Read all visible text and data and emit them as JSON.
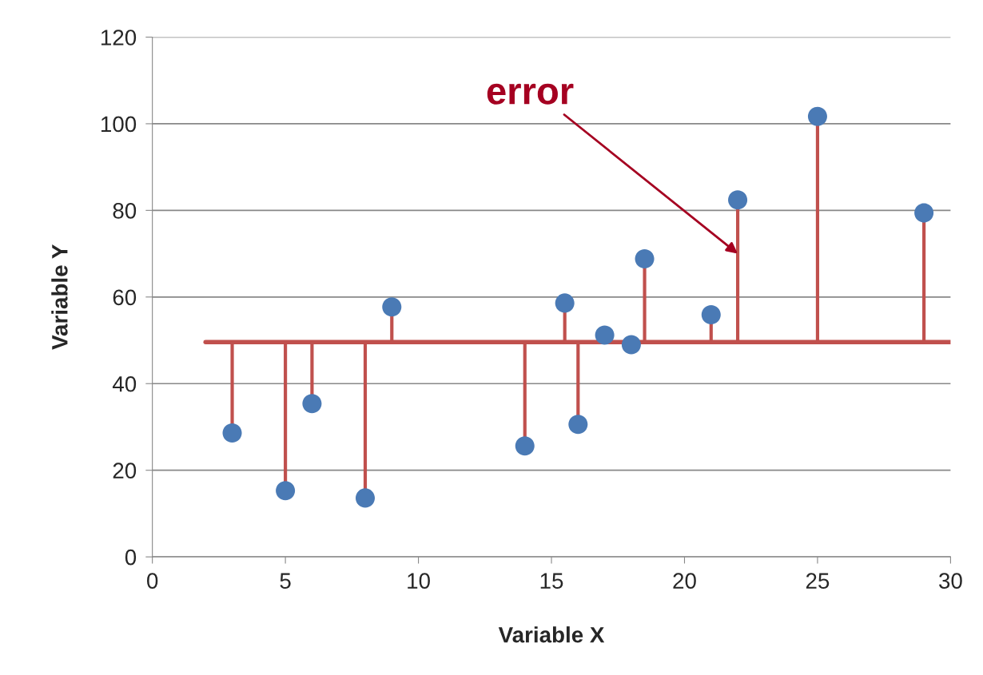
{
  "chart_data": {
    "type": "scatter",
    "xlabel": "Variable X",
    "ylabel": "Variable Y",
    "xlim": [
      0,
      30
    ],
    "xticks": [
      0,
      5,
      10,
      15,
      20,
      25,
      30
    ],
    "ylim": [
      0,
      120
    ],
    "yticks": [
      0,
      20,
      40,
      60,
      80,
      100,
      120
    ],
    "grid": "y",
    "marker": "circle",
    "series": [
      {
        "color": "#4a7ab5",
        "x": [
          3,
          5,
          6,
          8,
          9,
          14,
          15.5,
          16,
          17,
          18,
          18.5,
          21,
          22,
          25,
          29
        ],
        "values": [
          28.6,
          15.3,
          35.4,
          13.6,
          57.7,
          25.6,
          58.6,
          30.6,
          51.2,
          49.0,
          68.8,
          55.9,
          82.4,
          101.7,
          79.4
        ],
        "errors": [
          [
            28.6,
            49.6
          ],
          [
            15.3,
            49.6
          ],
          [
            35.4,
            49.6
          ],
          [
            13.6,
            49.6
          ],
          [
            49.6,
            57.7
          ],
          [
            25.6,
            49.6
          ],
          [
            49.6,
            58.6
          ],
          [
            30.6,
            49.6
          ],
          null,
          null,
          [
            49.6,
            68.8
          ],
          [
            49.6,
            55.9
          ],
          [
            49.6,
            82.4
          ],
          [
            49.6,
            101.7
          ],
          [
            49.6,
            79.4
          ]
        ]
      },
      {
        "type": "line",
        "color": "#c0504d",
        "marker": "none",
        "x": [
          2,
          30
        ],
        "values": [
          49.6,
          49.6
        ]
      }
    ],
    "annotations": [
      {
        "text": "error",
        "x": 22,
        "y": 70
      }
    ]
  }
}
